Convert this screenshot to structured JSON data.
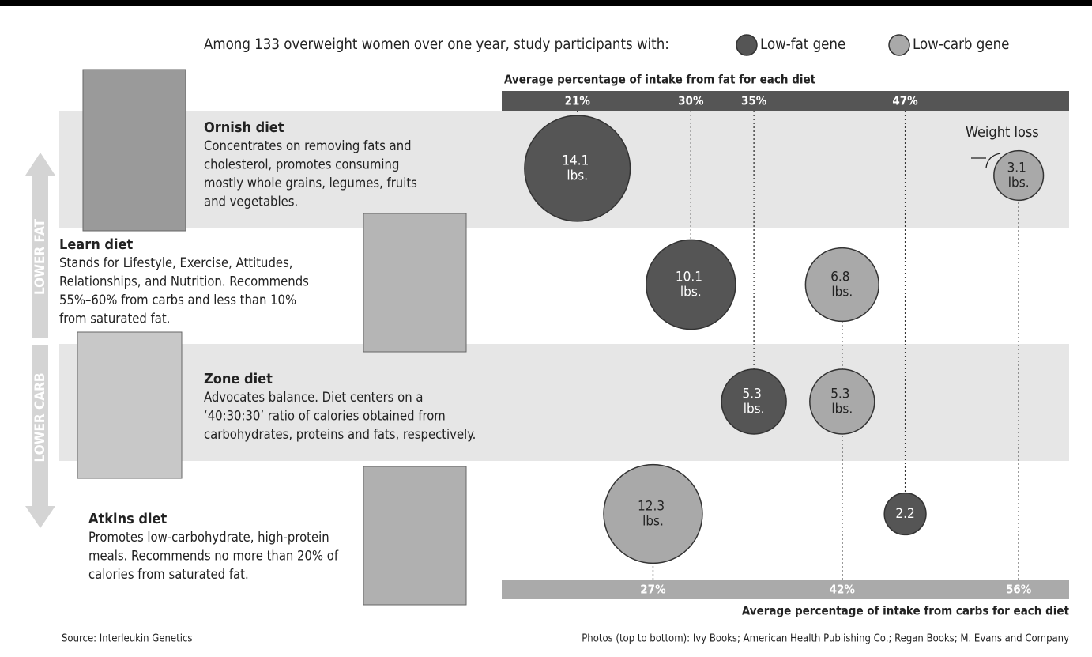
{
  "chart_data": {
    "type": "bubble",
    "legend_text": "Among 133 overweight women over one year, study participants with:",
    "categories": [
      "Ornish diet",
      "Learn diet",
      "Zone diet",
      "Atkins diet"
    ],
    "descriptions": [
      [
        "Concentrates on removing fats and",
        "cholesterol, promotes consuming",
        "mostly whole grains, legumes, fruits",
        "and vegetables."
      ],
      [
        "Stands for Lifestyle, Exercise, Attitudes,",
        "Relationships, and Nutrition. Recommends",
        "55%–60% from carbs and less than 10%",
        "from saturated fat."
      ],
      [
        "Advocates balance. Diet centers on a",
        "‘40:30:30’ ratio of calories obtained from",
        "carbohydrates, proteins and fats, respectively."
      ],
      [
        "Promotes low-carbohydrate, high-protein",
        "meals. Recommends no more than 20% of",
        "calories from saturated fat."
      ]
    ],
    "fat_axis": {
      "title": "Average percentage of intake from fat for each diet",
      "xlim": [
        15,
        60
      ],
      "xticks": [
        {
          "value": 21,
          "label": "21%"
        },
        {
          "value": 30,
          "label": "30%"
        },
        {
          "value": 35,
          "label": "35%"
        },
        {
          "value": 47,
          "label": "47%"
        }
      ]
    },
    "carb_axis": {
      "title": "Average percentage of intake from carbs for each diet",
      "xlim": [
        15,
        60
      ],
      "xticks": [
        {
          "value": 27,
          "label": "27%"
        },
        {
          "value": 42,
          "label": "42%"
        },
        {
          "value": 56,
          "label": "56%"
        }
      ]
    },
    "series": [
      {
        "name": "Low-fat gene",
        "color": "#555555",
        "axis": "fat",
        "x": [
          21,
          30,
          35,
          47
        ],
        "values": [
          14.1,
          10.1,
          5.3,
          2.2
        ],
        "value_labels": [
          "14.1 lbs.",
          "10.1 lbs.",
          "5.3 lbs.",
          "2.2"
        ]
      },
      {
        "name": "Low-carb gene",
        "color": "#a9a9a9",
        "axis": "carb",
        "x": [
          56,
          42,
          42,
          27
        ],
        "values": [
          3.1,
          6.8,
          5.3,
          12.3
        ],
        "value_labels": [
          "3.1 lbs.",
          "6.8 lbs.",
          "5.3 lbs.",
          "12.3 lbs."
        ]
      }
    ],
    "annotation": "Weight loss",
    "arrow_labels": [
      "LOWER FAT",
      "LOWER CARB"
    ],
    "source": "Source: Interleukin Genetics",
    "credits": "Photos (top to bottom): Ivy Books; American Health Publishing Co.; Regan Books; M. Evans and Company"
  }
}
